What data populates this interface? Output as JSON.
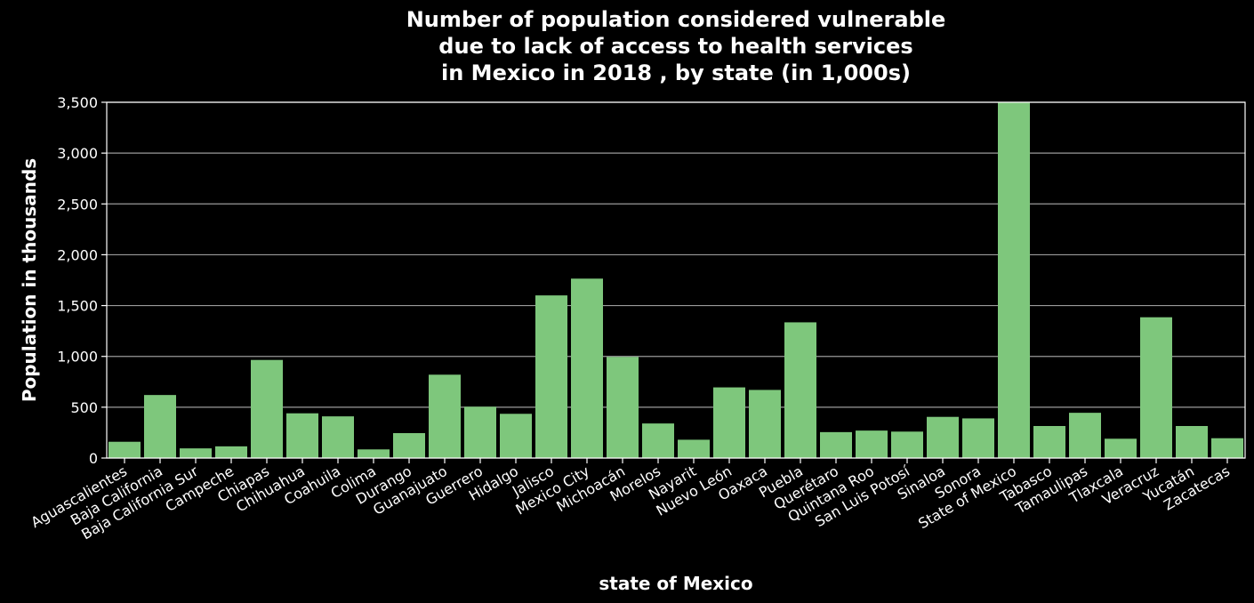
{
  "chart_data": {
    "type": "bar",
    "title_lines": [
      "Number of population considered vulnerable",
      "due to lack of access to health services",
      "in Mexico in 2018 , by state (in 1,000s)"
    ],
    "xlabel": "state of Mexico",
    "ylabel": "Population in thousands",
    "ylim": [
      0,
      3500
    ],
    "yticks": [
      0,
      500,
      1000,
      1500,
      2000,
      2500,
      3000,
      3500
    ],
    "ytick_labels": [
      "0",
      "500",
      "1,000",
      "1,500",
      "2,000",
      "2,500",
      "3,000",
      "3,500"
    ],
    "grid": true,
    "bar_color": "#7ec77c",
    "background": "#000000",
    "categories": [
      "Aguascalientes",
      "Baja California",
      "Baja California Sur",
      "Campeche",
      "Chiapas",
      "Chihuahua",
      "Coahuila",
      "Colima",
      "Durango",
      "Guanajuato",
      "Guerrero",
      "Hidalgo",
      "Jalisco",
      "Mexico City",
      "Michoacán",
      "Morelos",
      "Nayarit",
      "Nuevo León",
      "Oaxaca",
      "Puebla",
      "Querétaro",
      "Quintana Roo",
      "San Luis Potosí",
      "Sinaloa",
      "Sonora",
      "State of Mexico",
      "Tabasco",
      "Tamaulipas",
      "Tlaxcala",
      "Veracruz",
      "Yucatán",
      "Zacatecas"
    ],
    "values": [
      160,
      620,
      95,
      115,
      965,
      440,
      410,
      85,
      245,
      820,
      505,
      435,
      1600,
      1765,
      995,
      340,
      180,
      695,
      670,
      1335,
      255,
      270,
      260,
      405,
      390,
      3500,
      315,
      445,
      190,
      1385,
      315,
      195
    ]
  }
}
